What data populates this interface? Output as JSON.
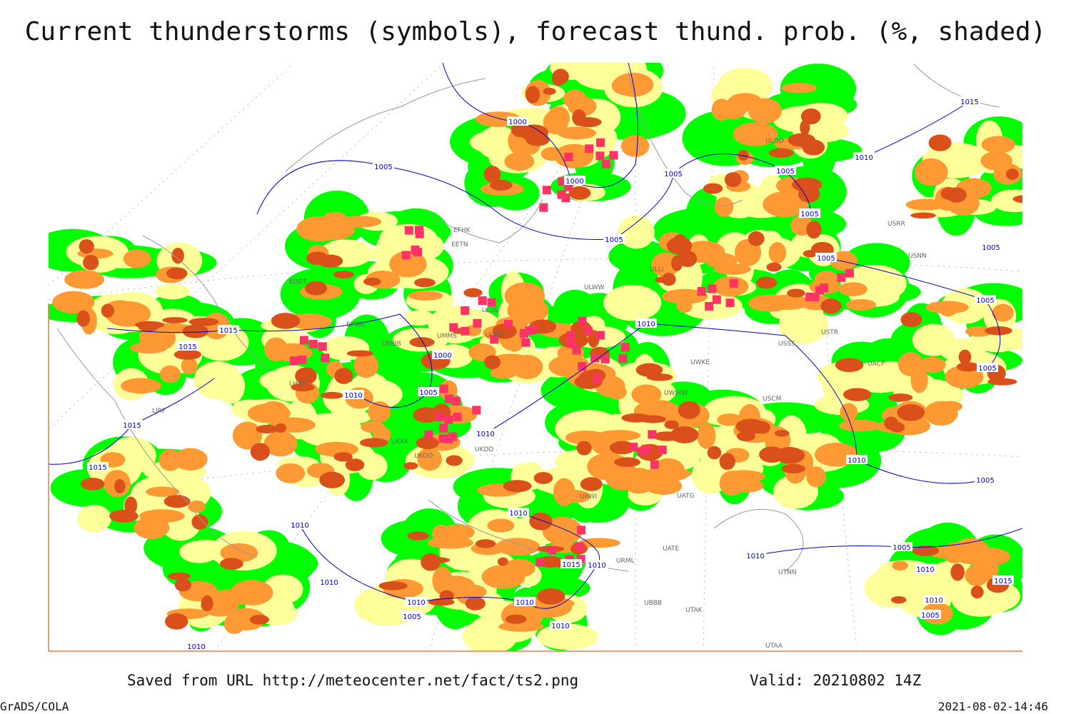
{
  "title": "Current thunderstorms (symbols), forecast thund. prob. (%, shaded)",
  "isobar_labels": [
    "1000",
    "1005",
    "1000",
    "1005",
    "1005",
    "1015",
    "1015",
    "1000",
    "1005",
    "1010",
    "1015",
    "1015",
    "1010",
    "1010",
    "1010",
    "1015",
    "1010",
    "1010",
    "1010",
    "1010",
    "1005",
    "1010",
    "1010",
    "1010",
    "1010",
    "1005",
    "1005",
    "1005",
    "1005",
    "1005",
    "1005",
    "1005",
    "1010",
    "1015",
    "1005",
    "1010",
    "1010",
    "1015",
    "1010",
    "1005"
  ],
  "stations": [
    "ULOL",
    "UUBS",
    "UMMS",
    "UMBB",
    "UKKK",
    "UKOO",
    "UKDD",
    "ULWW",
    "UWKE",
    "UWWW",
    "USCM",
    "USSS",
    "ULLI",
    "ULDD",
    "USRR",
    "USNN",
    "USTR",
    "UACP",
    "UATG",
    "UATE",
    "UTAK",
    "UTNN",
    "UBBB",
    "URWI",
    "URML",
    "UTAA",
    "EFHK",
    "EETN",
    "EDDT",
    "EPWA",
    "LHBP",
    "LIRF"
  ],
  "footer": {
    "source": "Saved from URL http://meteocenter.net/fact/ts2.png",
    "valid": "Valid: 20210802 14Z",
    "software": "GrADS/COLA",
    "timestamp": "2021-08-02-14:46"
  }
}
